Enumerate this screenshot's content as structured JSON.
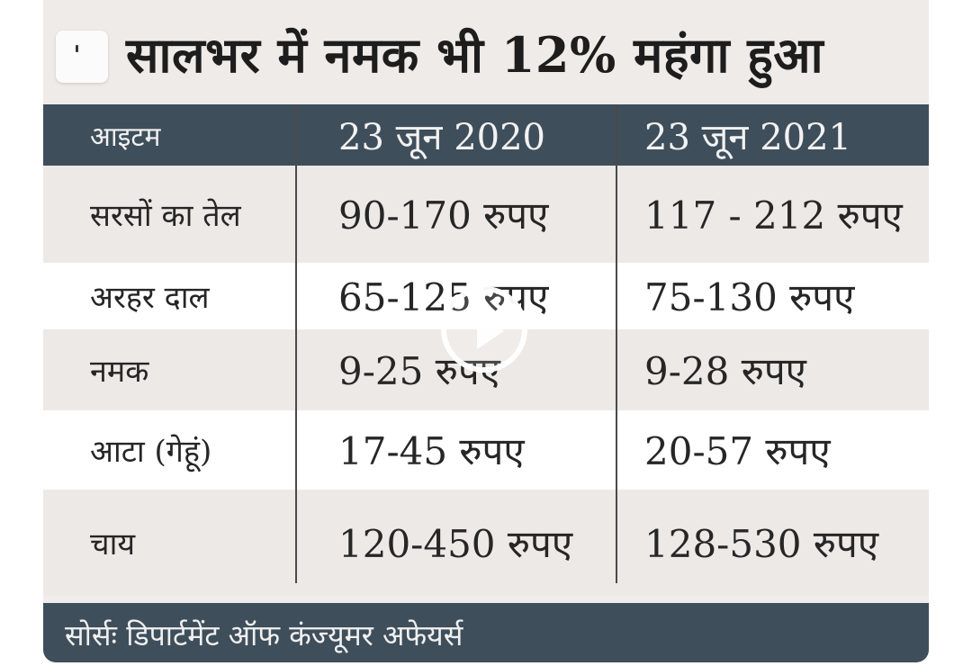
{
  "title": "सालभर में नमक भी 12% महंगा हुआ",
  "table": {
    "headers": [
      "आइटम",
      "23 जून 2020",
      "23 जून 2021"
    ],
    "rows": [
      {
        "item": "सरसों का तेल",
        "y2020": "90-170 रुपए",
        "y2021": "117 - 212 रुपए"
      },
      {
        "item": "अरहर दाल",
        "y2020": "65-125 रुपए",
        "y2021": "75-130 रुपए"
      },
      {
        "item": "नमक",
        "y2020": "9-25 रुपए",
        "y2021": "9-28 रुपए"
      },
      {
        "item": "आटा (गेहूं)",
        "y2020": "17-45 रुपए",
        "y2021": "20-57 रुपए"
      },
      {
        "item": "चाय",
        "y2020": "120-450 रुपए",
        "y2021": "128-530 रुपए"
      }
    ]
  },
  "footer": {
    "source": "सोर्सः डिपार्टमेंट ऑफ कंज्यूमर अफेयर्स"
  },
  "icons": {
    "logo": "brand-logo-icon",
    "play": "play-icon"
  },
  "colors": {
    "header_bg": "#3f4e5b",
    "shade_row": "#ede9e6",
    "white_row": "#ffffff"
  }
}
